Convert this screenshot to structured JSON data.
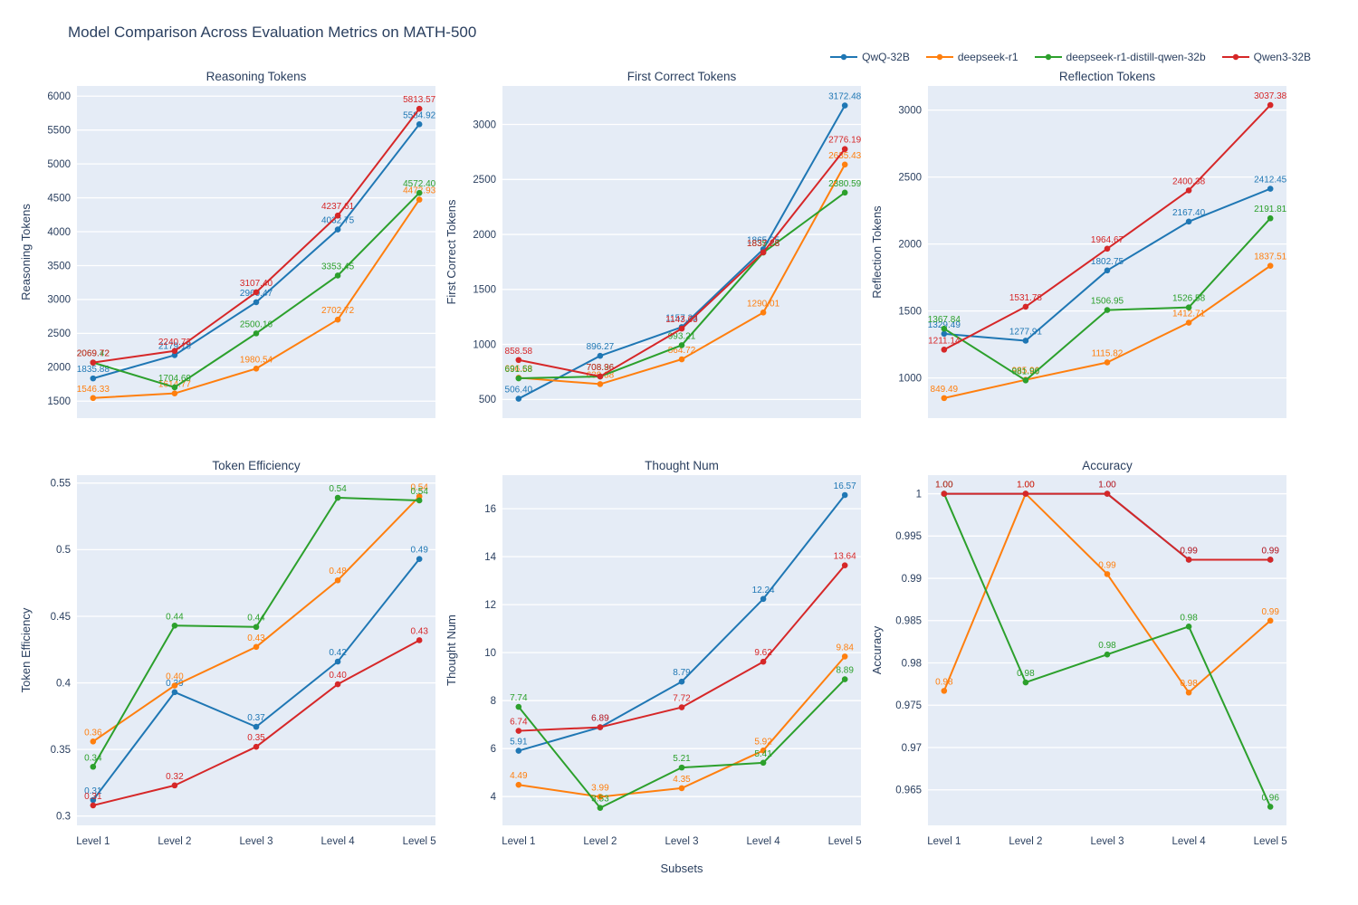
{
  "title": "Model Comparison Across Evaluation Metrics on MATH-500",
  "xlabel": "Subsets",
  "plot_bg": "#e5ecf6",
  "grid_color": "#ffffff",
  "text_color": "#2a3f5f",
  "legend": [
    {
      "name": "QwQ-32B",
      "color": "#1f77b4"
    },
    {
      "name": "deepseek-r1",
      "color": "#ff7f0e"
    },
    {
      "name": "deepseek-r1-distill-qwen-32b",
      "color": "#2ca02c"
    },
    {
      "name": "Qwen3-32B",
      "color": "#d62728"
    }
  ],
  "chart_data": [
    {
      "type": "line",
      "title": "Reasoning Tokens",
      "ylabel": "Reasoning Tokens",
      "categories": [
        "Level 1",
        "Level 2",
        "Level 3",
        "Level 4",
        "Level 5"
      ],
      "yticks": [
        1500,
        2000,
        2500,
        3000,
        3500,
        4000,
        4500,
        5000,
        5500,
        6000
      ],
      "ylim": [
        1250,
        6150
      ],
      "show_x_ticks": false,
      "series": [
        {
          "name": "QwQ-32B",
          "values": [
            1835.88,
            2179.18,
            2960.47,
            4032.75,
            5584.92
          ],
          "labels": [
            "1835.88",
            "2179.18",
            "2960.47",
            "4032.75",
            "5584.92"
          ]
        },
        {
          "name": "deepseek-r1",
          "values": [
            1546.33,
            1614.77,
            1980.54,
            2702.72,
            4472.93
          ],
          "labels": [
            "1546.33",
            "1614.77",
            "1980.54",
            "2702.72",
            "4472.93"
          ]
        },
        {
          "name": "deepseek-r1-distill-qwen-32b",
          "values": [
            2069.42,
            1704.69,
            2500.16,
            3353.45,
            4572.4
          ],
          "labels": [
            "2069.42",
            "1704.69",
            "2500.16",
            "3353.45",
            "4572.40"
          ]
        },
        {
          "name": "Qwen3-32B",
          "values": [
            2069.72,
            2240.73,
            3107.4,
            4237.61,
            5813.57
          ],
          "labels": [
            "2069.72",
            "2240.73",
            "3107.40",
            "4237.61",
            "5813.57"
          ]
        }
      ]
    },
    {
      "type": "line",
      "title": "First Correct Tokens",
      "ylabel": "First Correct Tokens",
      "categories": [
        "Level 1",
        "Level 2",
        "Level 3",
        "Level 4",
        "Level 5"
      ],
      "yticks": [
        500,
        1000,
        1500,
        2000,
        2500,
        3000
      ],
      "ylim": [
        330,
        3350
      ],
      "show_x_ticks": false,
      "series": [
        {
          "name": "QwQ-32B",
          "values": [
            506.4,
            896.27,
            1157.33,
            1865.35,
            3172.48
          ],
          "labels": [
            "506.40",
            "896.27",
            "1157.33",
            "1865.35",
            "3172.48"
          ]
        },
        {
          "name": "deepseek-r1",
          "values": [
            696.68,
            639.38,
            864.72,
            1290.01,
            2635.43
          ],
          "labels": [
            "696.68",
            "639.38",
            "864.72",
            "1290.01",
            "2635.43"
          ]
        },
        {
          "name": "deepseek-r1-distill-qwen-32b",
          "values": [
            691.58,
            708.36,
            993.21,
            1835.23,
            2380.59
          ],
          "labels": [
            "691.58",
            "708.36",
            "993.21",
            "1835.23",
            "2380.59"
          ]
        },
        {
          "name": "Qwen3-32B",
          "values": [
            858.58,
            708.96,
            1143.63,
            1837.28,
            2776.19
          ],
          "labels": [
            "858.58",
            "708.96",
            "1143.63",
            "1837.28",
            "2776.19"
          ]
        }
      ]
    },
    {
      "type": "line",
      "title": "Reflection Tokens",
      "ylabel": "Reflection Tokens",
      "categories": [
        "Level 1",
        "Level 2",
        "Level 3",
        "Level 4",
        "Level 5"
      ],
      "yticks": [
        1000,
        1500,
        2000,
        2500,
        3000
      ],
      "ylim": [
        700,
        3180
      ],
      "show_x_ticks": false,
      "series": [
        {
          "name": "QwQ-32B",
          "values": [
            1329.49,
            1277.91,
            1802.75,
            2167.4,
            2412.45
          ],
          "labels": [
            "1329.49",
            "1277.91",
            "1802.75",
            "2167.40",
            "2412.45"
          ]
        },
        {
          "name": "deepseek-r1",
          "values": [
            849.49,
            985.96,
            1115.82,
            1412.71,
            1837.51
          ],
          "labels": [
            "849.49",
            "985.96",
            "1115.82",
            "1412.71",
            "1837.51"
          ]
        },
        {
          "name": "deepseek-r1-distill-qwen-32b",
          "values": [
            1367.84,
            981.9,
            1506.95,
            1526.58,
            2191.81
          ],
          "labels": [
            "1367.84",
            "981.90",
            "1506.95",
            "1526.58",
            "2191.81"
          ]
        },
        {
          "name": "Qwen3-32B",
          "values": [
            1211.14,
            1531.78,
            1964.67,
            2400.38,
            3037.38
          ],
          "labels": [
            "1211.14",
            "1531.78",
            "1964.67",
            "2400.38",
            "3037.38"
          ]
        }
      ]
    },
    {
      "type": "line",
      "title": "Token Efficiency",
      "ylabel": "Token Efficiency",
      "categories": [
        "Level 1",
        "Level 2",
        "Level 3",
        "Level 4",
        "Level 5"
      ],
      "yticks": [
        0.3,
        0.35,
        0.4,
        0.45,
        0.5,
        0.55
      ],
      "ylim": [
        0.293,
        0.556
      ],
      "show_x_ticks": true,
      "series": [
        {
          "name": "QwQ-32B",
          "values": [
            0.312,
            0.393,
            0.367,
            0.416,
            0.493
          ],
          "labels": [
            "0.31",
            "0.39",
            "0.37",
            "0.42",
            "0.49"
          ]
        },
        {
          "name": "deepseek-r1",
          "values": [
            0.356,
            0.398,
            0.427,
            0.477,
            0.54
          ],
          "labels": [
            "0.36",
            "0.40",
            "0.43",
            "0.48",
            "0.54"
          ]
        },
        {
          "name": "deepseek-r1-distill-qwen-32b",
          "values": [
            0.337,
            0.443,
            0.442,
            0.539,
            0.537
          ],
          "labels": [
            "0.34",
            "0.44",
            "0.44",
            "0.54",
            "0.54"
          ]
        },
        {
          "name": "Qwen3-32B",
          "values": [
            0.308,
            0.323,
            0.352,
            0.399,
            0.432
          ],
          "labels": [
            "0.31",
            "0.32",
            "0.35",
            "0.40",
            "0.43"
          ]
        }
      ]
    },
    {
      "type": "line",
      "title": "Thought Num",
      "ylabel": "Thought Num",
      "categories": [
        "Level 1",
        "Level 2",
        "Level 3",
        "Level 4",
        "Level 5"
      ],
      "yticks": [
        4,
        6,
        8,
        10,
        12,
        14,
        16
      ],
      "ylim": [
        2.8,
        17.4
      ],
      "show_x_ticks": true,
      "series": [
        {
          "name": "QwQ-32B",
          "values": [
            5.91,
            6.89,
            8.79,
            12.24,
            16.57
          ],
          "labels": [
            "5.91",
            "6.89",
            "8.79",
            "12.24",
            "16.57"
          ]
        },
        {
          "name": "deepseek-r1",
          "values": [
            4.49,
            3.99,
            4.35,
            5.92,
            9.84
          ],
          "labels": [
            "4.49",
            "3.99",
            "4.35",
            "5.92",
            "9.84"
          ]
        },
        {
          "name": "deepseek-r1-distill-qwen-32b",
          "values": [
            7.74,
            3.53,
            5.21,
            5.41,
            8.89
          ],
          "labels": [
            "7.74",
            "3.53",
            "5.21",
            "5.41",
            "8.89"
          ]
        },
        {
          "name": "Qwen3-32B",
          "values": [
            6.74,
            6.89,
            7.72,
            9.62,
            13.64
          ],
          "labels": [
            "6.74",
            "6.89",
            "7.72",
            "9.62",
            "13.64"
          ]
        }
      ]
    },
    {
      "type": "line",
      "title": "Accuracy",
      "ylabel": "Accuracy",
      "categories": [
        "Level 1",
        "Level 2",
        "Level 3",
        "Level 4",
        "Level 5"
      ],
      "yticks": [
        0.965,
        0.97,
        0.975,
        0.98,
        0.985,
        0.99,
        0.995,
        1
      ],
      "ylim": [
        0.9608,
        1.0022
      ],
      "show_x_ticks": true,
      "series": [
        {
          "name": "QwQ-32B",
          "values": [
            1.0,
            1.0,
            1.0,
            0.9922,
            0.9922
          ],
          "labels": [
            "1.00",
            "1.00",
            "1.00",
            "0.99",
            "0.99"
          ]
        },
        {
          "name": "deepseek-r1",
          "values": [
            0.9767,
            1.0,
            0.9905,
            0.9765,
            0.985
          ],
          "labels": [
            "0.98",
            "1.00",
            "0.99",
            "0.98",
            "0.99"
          ]
        },
        {
          "name": "deepseek-r1-distill-qwen-32b",
          "values": [
            1.0,
            0.9777,
            0.981,
            0.9843,
            0.963
          ],
          "labels": [
            "1.00",
            "0.98",
            "0.98",
            "0.98",
            "0.96"
          ]
        },
        {
          "name": "Qwen3-32B",
          "values": [
            1.0,
            1.0,
            1.0,
            0.9922,
            0.9922
          ],
          "labels": [
            "1.00",
            "1.00",
            "1.00",
            "0.99",
            "0.99"
          ]
        }
      ]
    }
  ]
}
